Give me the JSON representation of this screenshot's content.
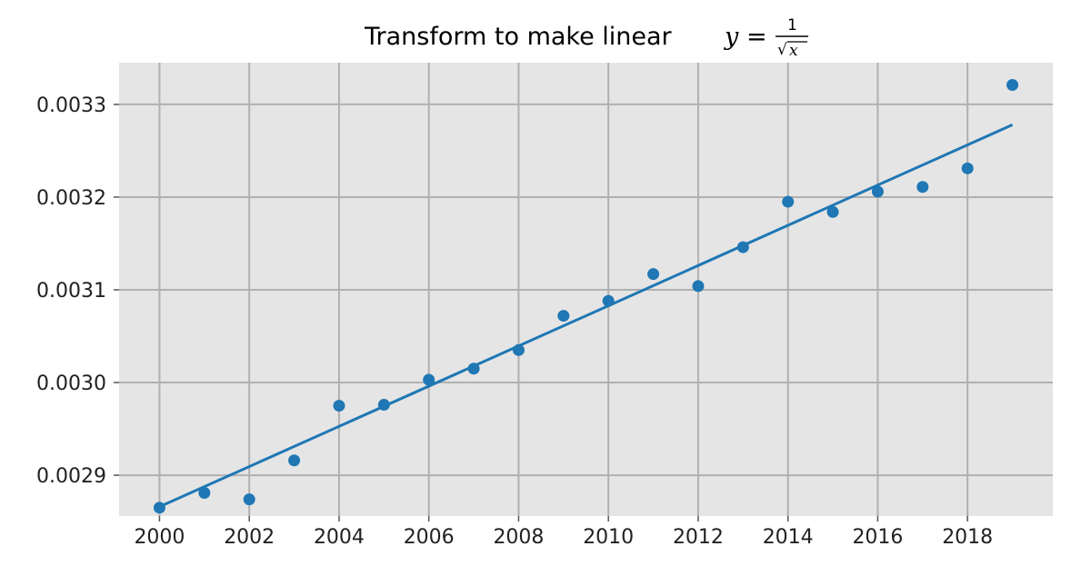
{
  "chart_data": {
    "type": "scatter",
    "title": {
      "text": "Transform to make linear",
      "math_var": "y",
      "math_eq": "=",
      "frac_numerator": "1",
      "frac_radical": "√",
      "frac_radicand": "x"
    },
    "xlabel": "",
    "ylabel": "",
    "xlim": [
      1999.1,
      2019.9
    ],
    "ylim": [
      0.002856,
      0.003345
    ],
    "x_ticks": [
      2000,
      2002,
      2004,
      2006,
      2008,
      2010,
      2012,
      2014,
      2016,
      2018
    ],
    "x_tick_labels": [
      "2000",
      "2002",
      "2004",
      "2006",
      "2008",
      "2010",
      "2012",
      "2014",
      "2016",
      "2018"
    ],
    "y_ticks": [
      0.0029,
      0.003,
      0.0031,
      0.0032,
      0.0033
    ],
    "y_tick_labels": [
      "0.0029",
      "0.0030",
      "0.0031",
      "0.0032",
      "0.0033"
    ],
    "grid": true,
    "series": [
      {
        "kind": "scatter",
        "color": "#1f77b4",
        "x": [
          2000,
          2001,
          2002,
          2003,
          2004,
          2005,
          2006,
          2007,
          2008,
          2009,
          2010,
          2011,
          2012,
          2013,
          2014,
          2015,
          2016,
          2017,
          2018,
          2019
        ],
        "y": [
          0.002865,
          0.002881,
          0.002874,
          0.002916,
          0.002975,
          0.002976,
          0.003003,
          0.003015,
          0.003035,
          0.003072,
          0.003088,
          0.003117,
          0.003104,
          0.003146,
          0.003195,
          0.003184,
          0.003206,
          0.003211,
          0.003231,
          0.003321
        ]
      },
      {
        "kind": "line",
        "color": "#1f77b4",
        "x": [
          2000,
          2019
        ],
        "y": [
          0.002866,
          0.003278
        ]
      }
    ],
    "colors": {
      "plot_background": "#e5e5e5",
      "grid": "#b0b0b0",
      "series": "#1f77b4"
    }
  }
}
